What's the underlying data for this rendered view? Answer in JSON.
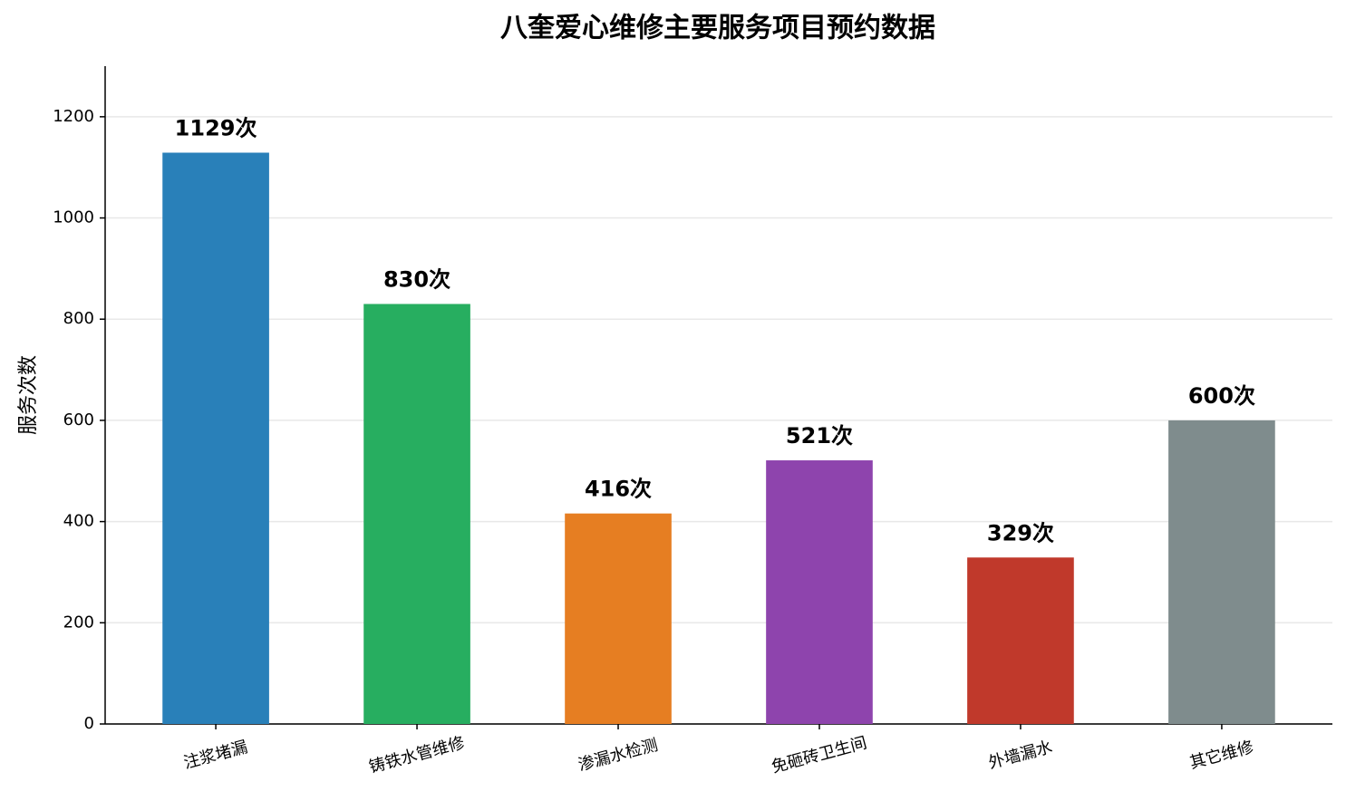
{
  "chart_data": {
    "type": "bar",
    "title": "八奎爱心维修主要服务项目预约数据",
    "y_label": "服务次数",
    "categories": [
      "注浆堵漏",
      "铸铁水管维修",
      "渗漏水检测",
      "免砸砖卫生间",
      "外墙漏水",
      "其它维修"
    ],
    "values": [
      1129,
      830,
      416,
      521,
      329,
      600
    ],
    "value_labels": [
      "1129次",
      "830次",
      "416次",
      "521次",
      "329次",
      "600次"
    ],
    "colors": [
      "#2980b9",
      "#27ae60",
      "#e67e22",
      "#8e44ad",
      "#c0392b",
      "#7f8c8d"
    ],
    "ylim": [
      0,
      1300
    ],
    "yticks": [
      0,
      200,
      400,
      600,
      800,
      1000,
      1200
    ],
    "grid": true
  }
}
